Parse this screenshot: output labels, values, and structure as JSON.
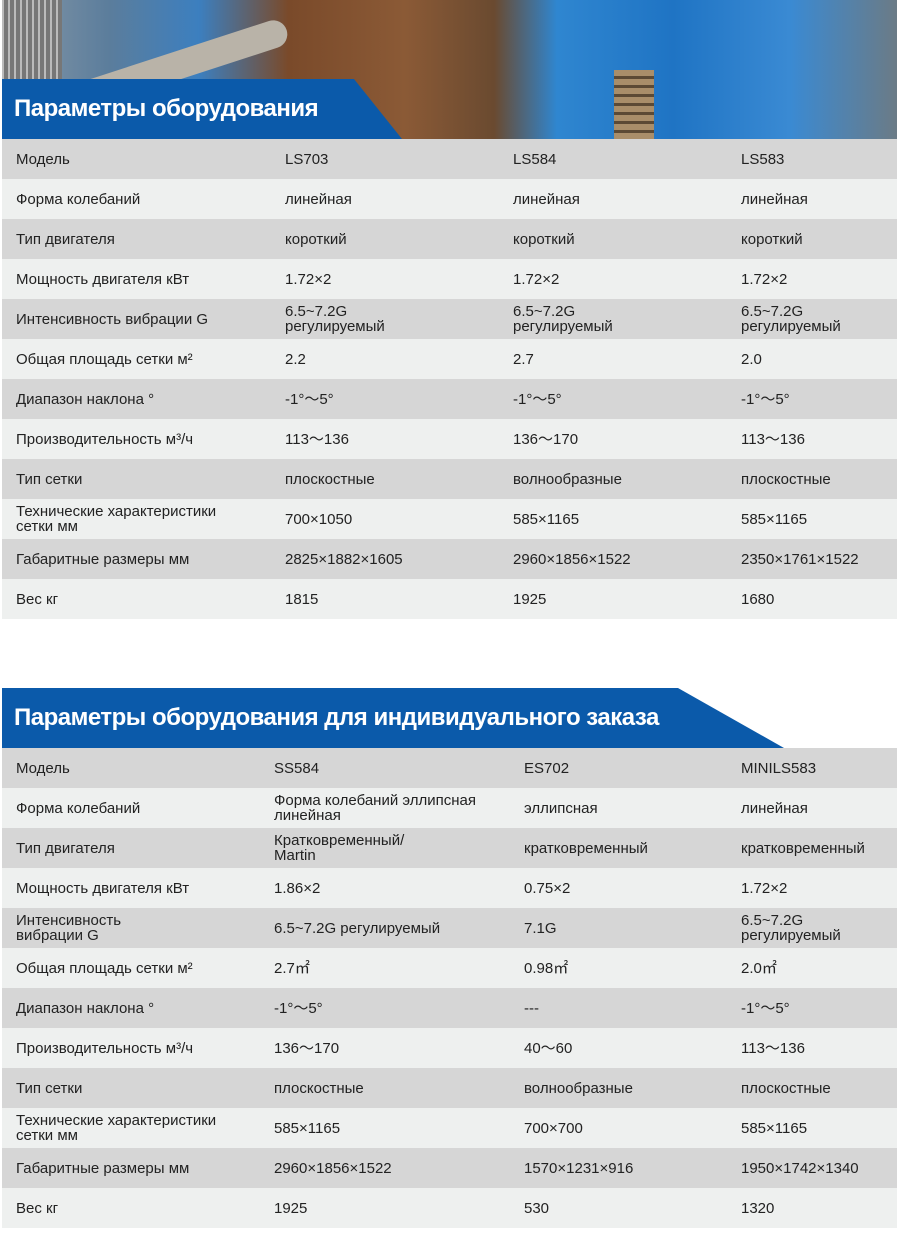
{
  "colors": {
    "banner": "#0b5aaa",
    "row_dark": "#d6d6d6",
    "row_light": "#eef0ef"
  },
  "table1": {
    "title": "Параметры оборудования",
    "rows": [
      [
        "Модель",
        "LS703",
        "LS584",
        "LS583"
      ],
      [
        "Форма колебаний",
        "линейная",
        "линейная",
        "линейная"
      ],
      [
        "Тип двигателя",
        "короткий",
        "короткий",
        "короткий"
      ],
      [
        "Мощность двигателя кВт",
        "1.72×2",
        "1.72×2",
        "1.72×2"
      ],
      [
        "Интенсивность вибрации G",
        "6.5~7.2G\nрегулируемый",
        "6.5~7.2G\nрегулируемый",
        "6.5~7.2G\nрегулируемый"
      ],
      [
        "Общая площадь сетки м²",
        "2.2",
        "2.7",
        "2.0"
      ],
      [
        "Диапазон наклона °",
        "-1°～5°",
        "-1°～5°",
        "-1°～5°"
      ],
      [
        " Производительность м³/ч",
        "113～136",
        "136～170",
        "113～136"
      ],
      [
        "Тип сетки",
        "плоскостные",
        "волнообразные",
        "плоскостные"
      ],
      [
        "Технические характеристики\nсетки мм",
        "700×1050",
        "585×1165",
        "585×1165"
      ],
      [
        "Габаритные размеры мм",
        "2825×1882×1605",
        "2960×1856×1522",
        "2350×1761×1522"
      ],
      [
        "Вес кг",
        "1815",
        "1925",
        "1680"
      ]
    ]
  },
  "table2": {
    "title": "Параметры оборудования для индивидуального заказа",
    "rows": [
      [
        "Модель",
        "SS584",
        "ES702",
        "MINILS583"
      ],
      [
        "Форма колебаний",
        "Форма колебаний эллипсная\nлинейная",
        "эллипсная",
        "линейная"
      ],
      [
        "Тип двигателя",
        "Кратковременный/\nMartin",
        "кратковременный",
        "кратковременный"
      ],
      [
        "Мощность двигателя кВт",
        "1.86×2",
        "0.75×2",
        "1.72×2"
      ],
      [
        "Интенсивность\nвибрации G",
        "6.5~7.2G регулируемый",
        "7.1G",
        "6.5~7.2G\nрегулируемый"
      ],
      [
        "Общая площадь сетки м²",
        "2.7㎡",
        "0.98㎡",
        "2.0㎡"
      ],
      [
        "Диапазон наклона °",
        "-1°～5°",
        "---",
        "-1°～5°"
      ],
      [
        "Производительность м³/ч",
        "136～170",
        "40～60",
        "113～136"
      ],
      [
        "Тип сетки",
        "плоскостные",
        "волнообразные",
        "плоскостные"
      ],
      [
        "Технические характеристики\nсетки мм",
        "585×1165",
        "700×700",
        "585×1165"
      ],
      [
        "Габаритные размеры мм",
        "2960×1856×1522",
        "1570×1231×916",
        "1950×1742×1340"
      ],
      [
        "Вес кг",
        "1925",
        "530",
        "1320"
      ]
    ]
  }
}
